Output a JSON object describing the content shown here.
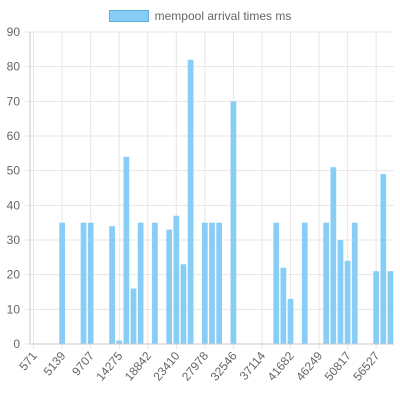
{
  "colors": {
    "bar": "#87cdf6",
    "bar_border": "#5aaee0",
    "grid": "#e6e6e6",
    "axis": "#c8c8c8",
    "text": "#666666"
  },
  "chart_data": {
    "type": "bar",
    "legend_position": "top",
    "grid": true,
    "ylim": [
      0,
      90
    ],
    "yticks": [
      0,
      10,
      20,
      30,
      40,
      50,
      60,
      70,
      80,
      90
    ],
    "xtick_labels": [
      "571",
      "5139",
      "9707",
      "14275",
      "18842",
      "23410",
      "27978",
      "32546",
      "37114",
      "41682",
      "46249",
      "50817",
      "56527"
    ],
    "series": [
      {
        "name": "mempool arrival times ms",
        "values": [
          0,
          0,
          0,
          0,
          35,
          0,
          0,
          35,
          35,
          0,
          0,
          34,
          1,
          54,
          16,
          35,
          0,
          35,
          0,
          33,
          37,
          23,
          82,
          0,
          35,
          35,
          35,
          0,
          70,
          0,
          0,
          0,
          0,
          0,
          35,
          22,
          13,
          0,
          35,
          0,
          0,
          35,
          51,
          30,
          24,
          35,
          0,
          0,
          21,
          49,
          21
        ]
      }
    ]
  }
}
